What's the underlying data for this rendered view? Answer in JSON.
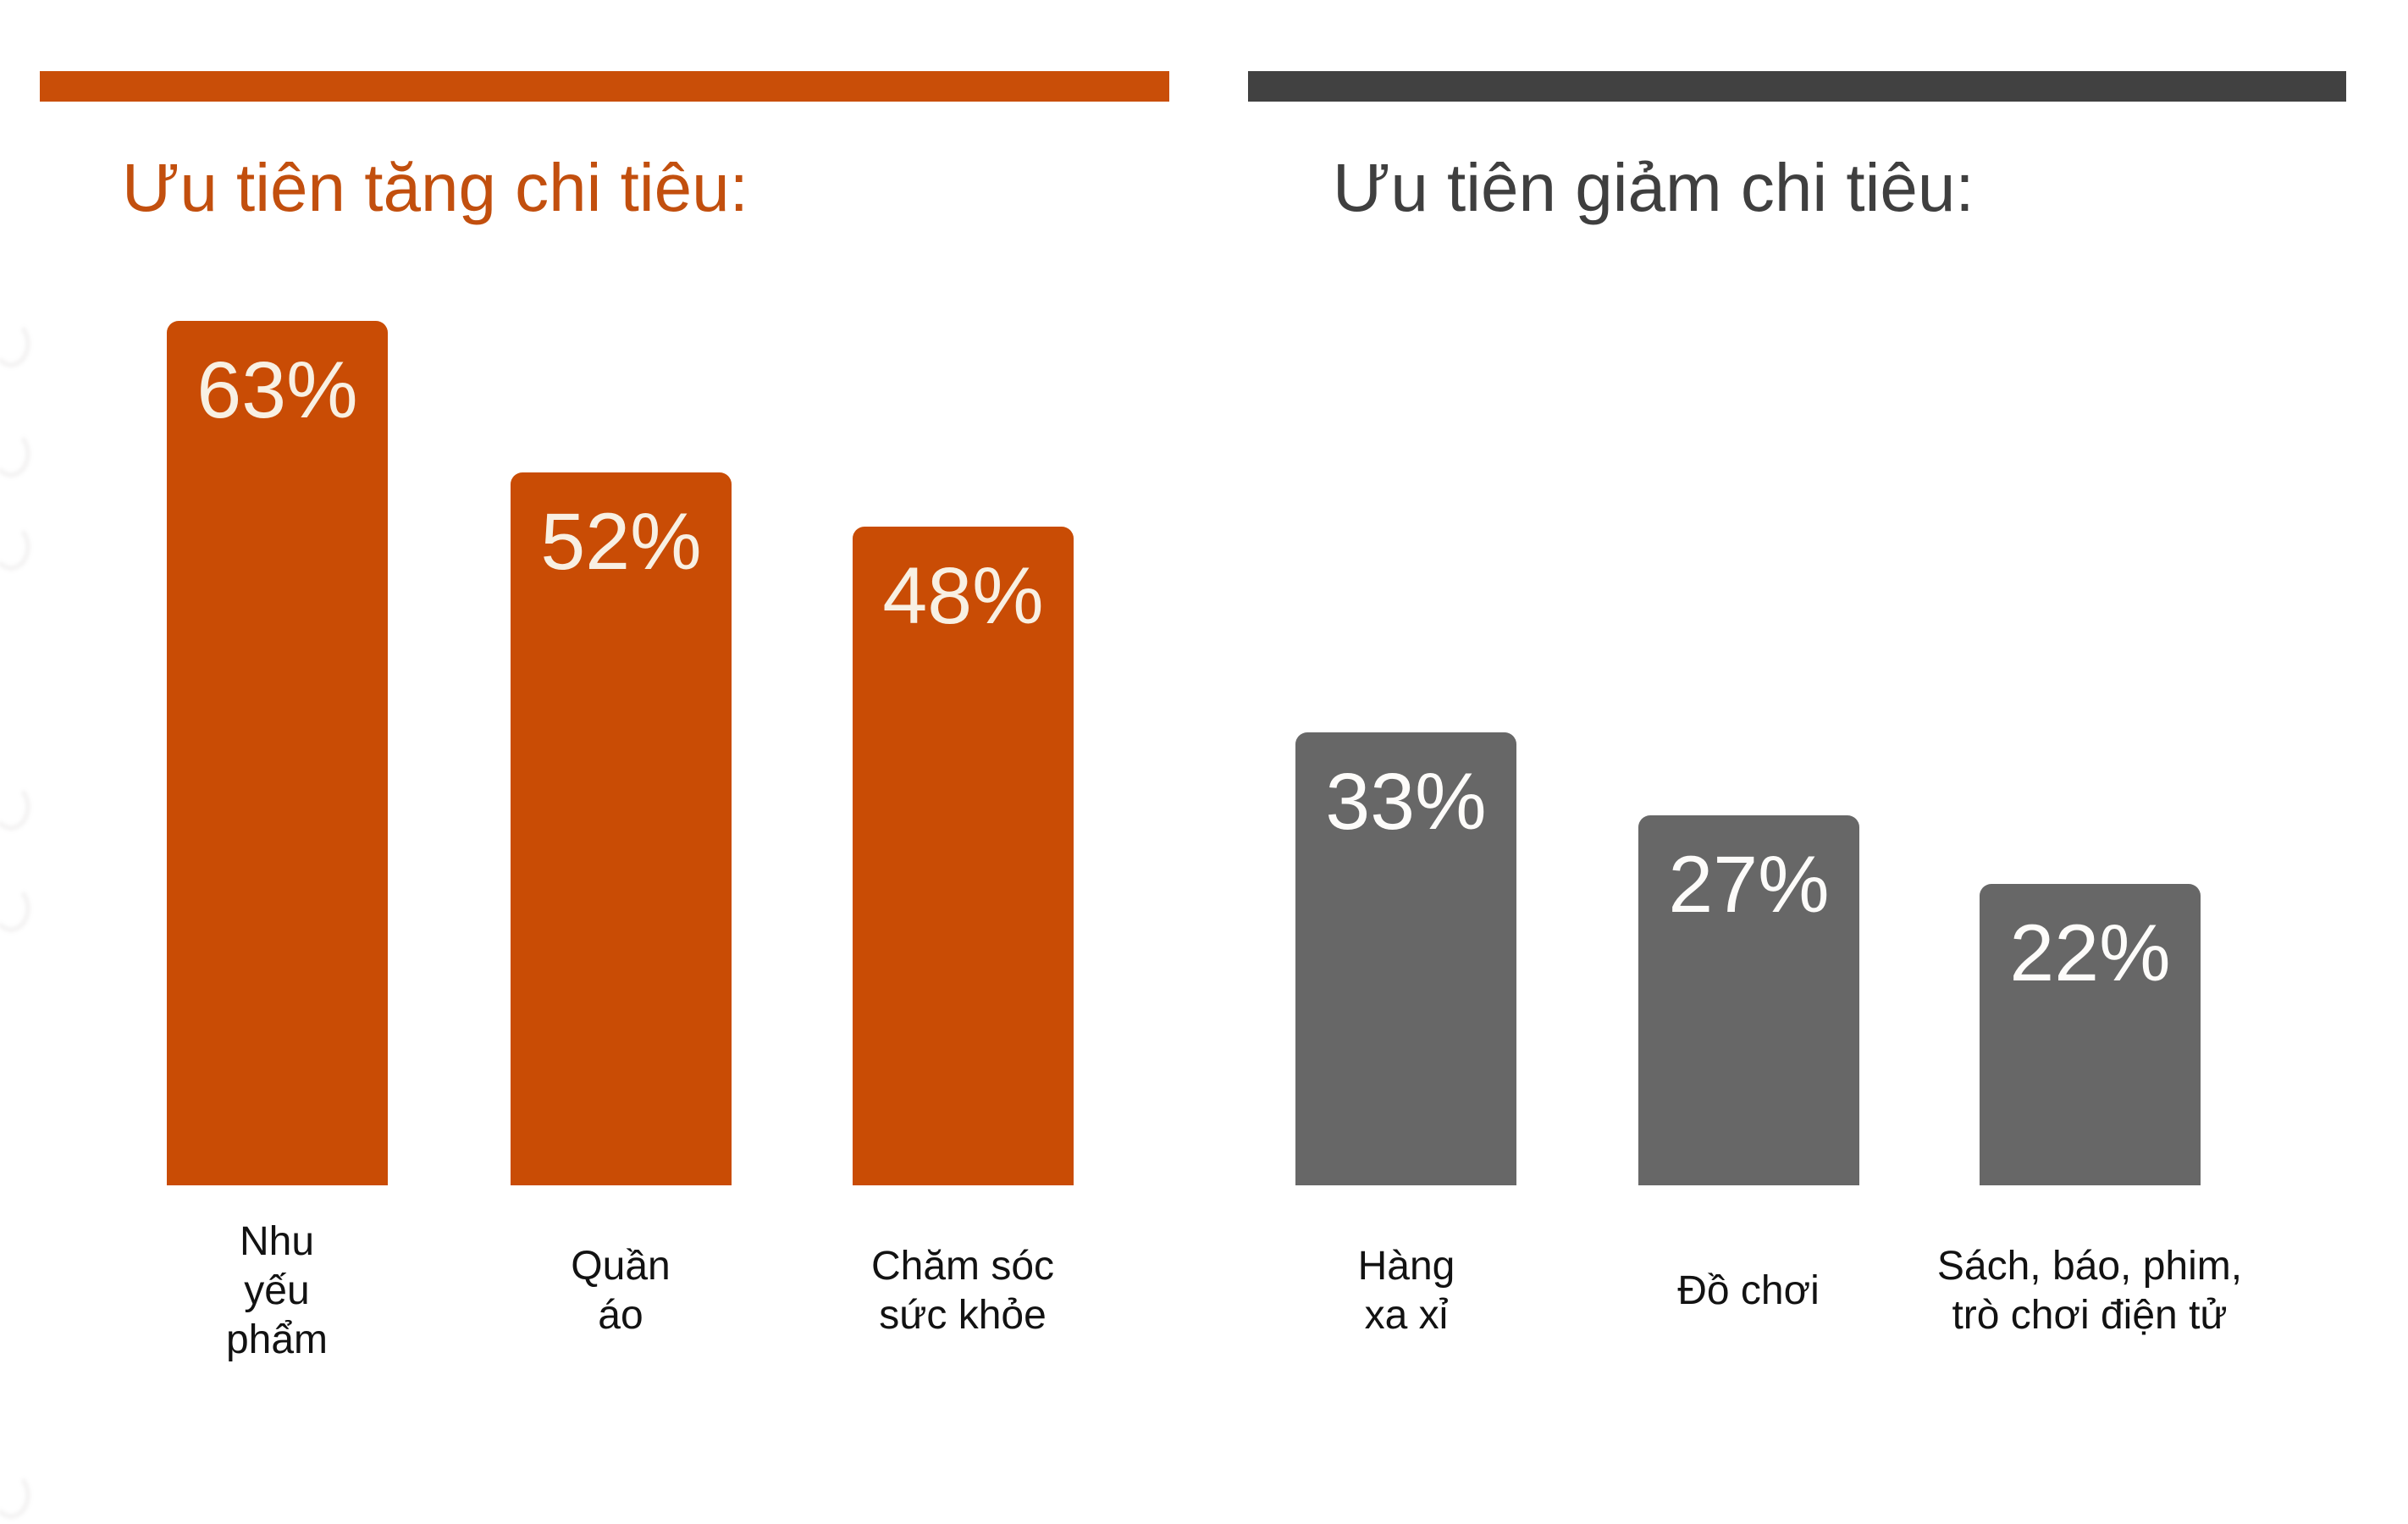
{
  "chart_data": [
    {
      "type": "bar",
      "title": "Ưu tiên tăng chi tiêu:",
      "categories": [
        "Nhu yếu phẩm",
        "Quần áo",
        "Chăm sóc sức khỏe"
      ],
      "category_lines": [
        [
          "Nhu",
          "yếu",
          "phẩm"
        ],
        [
          "Quần",
          "áo"
        ],
        [
          "Chăm sóc",
          "sức khỏe"
        ]
      ],
      "values": [
        63,
        52,
        48
      ],
      "value_labels": [
        "63%",
        "52%",
        "48%"
      ],
      "value_unit": "%",
      "bar_color": "#c94c05",
      "rule_color": "#c94e08",
      "title_color": "#c24f0e",
      "value_label_color": "#f8f0e3",
      "category_label_color": "#121212",
      "value_label_position": "inside-top",
      "axes_visible": false,
      "grid": false,
      "legend": "none"
    },
    {
      "type": "bar",
      "title": "Ưu tiên giảm chi tiêu:",
      "categories": [
        "Hàng xa xỉ",
        "Đồ chơi",
        "Sách, báo, phim, trò chơi điện tử"
      ],
      "category_lines": [
        [
          "Hàng",
          "xa xỉ"
        ],
        [
          "Đồ chơi"
        ],
        [
          "Sách, báo, phim,",
          "trò chơi điện tử"
        ]
      ],
      "values": [
        33,
        27,
        22
      ],
      "value_labels": [
        "33%",
        "27%",
        "22%"
      ],
      "value_unit": "%",
      "bar_color": "#676767",
      "rule_color": "#414141",
      "title_color": "#3f3f3f",
      "value_label_color": "#fdfcfa",
      "category_label_color": "#121212",
      "value_label_position": "inside-top",
      "axes_visible": false,
      "grid": false,
      "legend": "none"
    }
  ]
}
